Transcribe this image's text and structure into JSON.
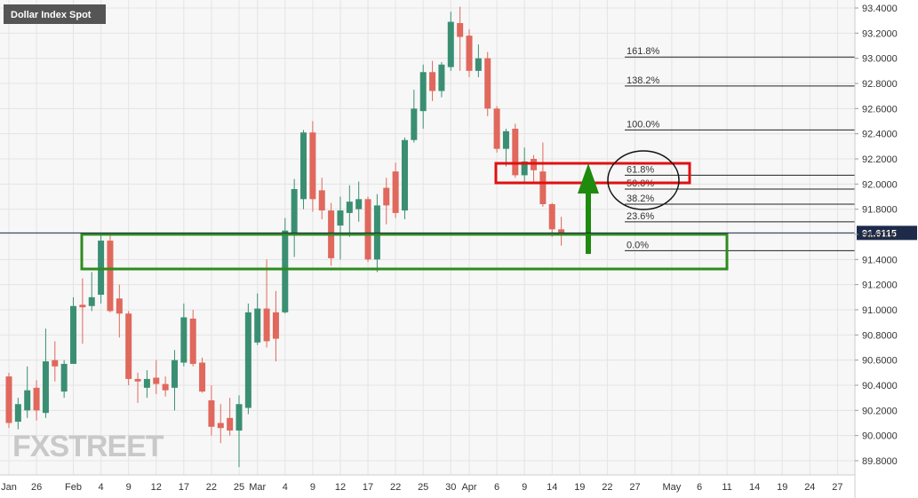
{
  "chart_data": {
    "type": "candlestick",
    "title": "Dollar Index Spot",
    "watermark": "FXSTREET",
    "categories": [
      "Jan",
      null,
      null,
      "26",
      null,
      null,
      null,
      "Feb",
      null,
      null,
      "4",
      null,
      null,
      "9",
      null,
      null,
      "12",
      null,
      null,
      "17",
      null,
      null,
      "22",
      null,
      null,
      "25",
      null,
      "Mar",
      null,
      null,
      "4",
      null,
      null,
      "9",
      null,
      null,
      "12",
      null,
      null,
      "17",
      null,
      null,
      "22",
      null,
      null,
      "25",
      null,
      null,
      "30",
      null,
      "Apr",
      null,
      null,
      "6",
      null,
      null,
      "9",
      null,
      null,
      "14",
      null,
      null,
      "19",
      null,
      null,
      "22",
      null,
      null,
      "27",
      null,
      null,
      null,
      "May",
      null,
      null,
      "6",
      null,
      null,
      "11",
      null,
      null,
      "14",
      null,
      null,
      "19",
      null,
      null,
      "24",
      null,
      null,
      "27",
      null
    ],
    "open": [
      90.47,
      90.11,
      90.2,
      90.38,
      90.18,
      90.6,
      90.35,
      90.57,
      91.04,
      91.03,
      91.12,
      91.55,
      91.09,
      90.97,
      90.45,
      90.38,
      90.46,
      90.41,
      90.38,
      90.58,
      90.93,
      90.58,
      90.28,
      90.1,
      90.14,
      90.04,
      90.22,
      90.74,
      91.01,
      90.98,
      90.98,
      91.61,
      91.88,
      92.41,
      91.95,
      91.79,
      91.67,
      91.77,
      91.8,
      91.88,
      91.4,
      91.97,
      92.1,
      91.79,
      92.35,
      92.58,
      92.89,
      92.74,
      92.93,
      93.28,
      93.18,
      92.9,
      93.0,
      92.6,
      92.28,
      92.44,
      92.07,
      92.2,
      92.1,
      91.84,
      91.64,
      null,
      null,
      null,
      null,
      null,
      null,
      null,
      null,
      null,
      null,
      null,
      null,
      null,
      null,
      null,
      null,
      null,
      null,
      null,
      null,
      null,
      null,
      null,
      null,
      null,
      null,
      null,
      null,
      null,
      null,
      null
    ],
    "high": [
      90.5,
      90.3,
      90.55,
      90.44,
      90.85,
      90.75,
      90.6,
      91.1,
      91.25,
      91.3,
      91.6,
      91.6,
      91.2,
      90.99,
      90.5,
      90.52,
      90.6,
      90.47,
      90.68,
      91.05,
      91.0,
      90.62,
      90.4,
      90.25,
      90.3,
      90.32,
      91.05,
      91.13,
      91.4,
      91.15,
      91.73,
      92.04,
      92.43,
      92.5,
      92.05,
      91.85,
      91.9,
      91.99,
      92.02,
      91.9,
      91.92,
      92.05,
      92.17,
      92.37,
      92.75,
      92.95,
      92.98,
      92.97,
      93.37,
      93.41,
      93.23,
      93.11,
      93.05,
      92.62,
      92.44,
      92.48,
      92.29,
      92.23,
      92.33,
      91.85,
      91.74,
      null,
      null,
      null,
      null,
      null,
      null,
      null,
      null,
      null,
      null,
      null,
      null,
      null,
      null,
      null,
      null,
      null,
      null,
      null,
      null,
      null,
      null,
      null,
      null,
      null,
      null,
      null,
      null,
      null,
      null,
      null
    ],
    "low": [
      90.06,
      90.05,
      90.14,
      90.12,
      90.14,
      90.43,
      90.3,
      90.57,
      90.73,
      90.99,
      91.05,
      90.98,
      90.78,
      90.4,
      90.26,
      90.3,
      90.33,
      90.31,
      90.2,
      90.55,
      90.55,
      90.34,
      90.0,
      89.94,
      90.0,
      89.75,
      90.17,
      90.72,
      90.7,
      90.59,
      90.97,
      91.42,
      91.8,
      91.78,
      91.72,
      91.35,
      91.4,
      91.58,
      91.7,
      91.38,
      91.3,
      91.68,
      91.73,
      91.72,
      92.33,
      92.44,
      92.66,
      92.69,
      92.9,
      92.9,
      92.85,
      92.85,
      92.54,
      92.25,
      92.14,
      92.05,
      92.02,
      92.02,
      91.82,
      91.58,
      91.51,
      null,
      null,
      null,
      null,
      null,
      null,
      null,
      null,
      null,
      null,
      null,
      null,
      null,
      null,
      null,
      null,
      null,
      null,
      null,
      null,
      null,
      null,
      null,
      null,
      null,
      null,
      null,
      null,
      null,
      null,
      null
    ],
    "close": [
      90.1,
      90.25,
      90.36,
      90.2,
      90.59,
      90.55,
      90.57,
      91.03,
      91.02,
      91.1,
      91.55,
      90.99,
      90.97,
      90.45,
      90.43,
      90.45,
      90.41,
      90.36,
      90.6,
      90.94,
      90.57,
      90.35,
      90.07,
      90.06,
      90.04,
      90.25,
      90.98,
      91.01,
      90.75,
      90.77,
      91.63,
      91.96,
      92.41,
      91.88,
      91.79,
      91.41,
      91.79,
      91.86,
      91.88,
      91.4,
      91.83,
      91.83,
      91.77,
      92.35,
      92.6,
      92.89,
      92.74,
      92.95,
      93.29,
      93.17,
      92.9,
      93.0,
      92.6,
      92.28,
      92.42,
      92.07,
      92.18,
      92.11,
      91.84,
      91.64,
      91.61,
      null,
      null,
      null,
      null,
      null,
      null,
      null,
      null,
      null,
      null,
      null,
      null,
      null,
      null,
      null,
      null,
      null,
      null,
      null,
      null,
      null,
      null,
      null,
      null,
      null,
      null,
      null,
      null,
      null,
      null,
      null
    ],
    "up_color": "#3a8f73",
    "down_color": "#e0685c",
    "last_price": 91.6115,
    "fib_levels": [
      {
        "label": "161.8%",
        "value": 93.01
      },
      {
        "label": "138.2%",
        "value": 92.78
      },
      {
        "label": "100.0%",
        "value": 92.43
      },
      {
        "label": "61.8%",
        "value": 92.07
      },
      {
        "label": "50.0%",
        "value": 91.96
      },
      {
        "label": "38.2%",
        "value": 91.84
      },
      {
        "label": "23.6%",
        "value": 91.7
      },
      {
        "label": "0.0%",
        "value": 91.47
      }
    ],
    "ylim": [
      89.687,
      93.4635
    ],
    "yticks": [
      {
        "value": 89.8,
        "label": "89.8000"
      },
      {
        "value": 90.0,
        "label": "90.0000"
      },
      {
        "value": 90.2,
        "label": "90.2000"
      },
      {
        "value": 90.4,
        "label": "90.4000"
      },
      {
        "value": 90.6,
        "label": "90.6000"
      },
      {
        "value": 90.8,
        "label": "90.8000"
      },
      {
        "value": 91.0,
        "label": "91.0000"
      },
      {
        "value": 91.2,
        "label": "91.2000"
      },
      {
        "value": 91.4,
        "label": "91.4000"
      },
      {
        "value": 91.6,
        "label": "91.6000"
      },
      {
        "value": 91.8,
        "label": "91.8000"
      },
      {
        "value": 92.0,
        "label": "92.0000"
      },
      {
        "value": 92.2,
        "label": "92.2000"
      },
      {
        "value": 92.4,
        "label": "92.4000"
      },
      {
        "value": 92.6,
        "label": "92.6000"
      },
      {
        "value": 92.8,
        "label": "92.8000"
      },
      {
        "value": 93.0,
        "label": "93.0000"
      },
      {
        "value": 93.2,
        "label": "93.2000"
      },
      {
        "value": 93.4,
        "label": "93.4000"
      }
    ],
    "grid": true
  }
}
